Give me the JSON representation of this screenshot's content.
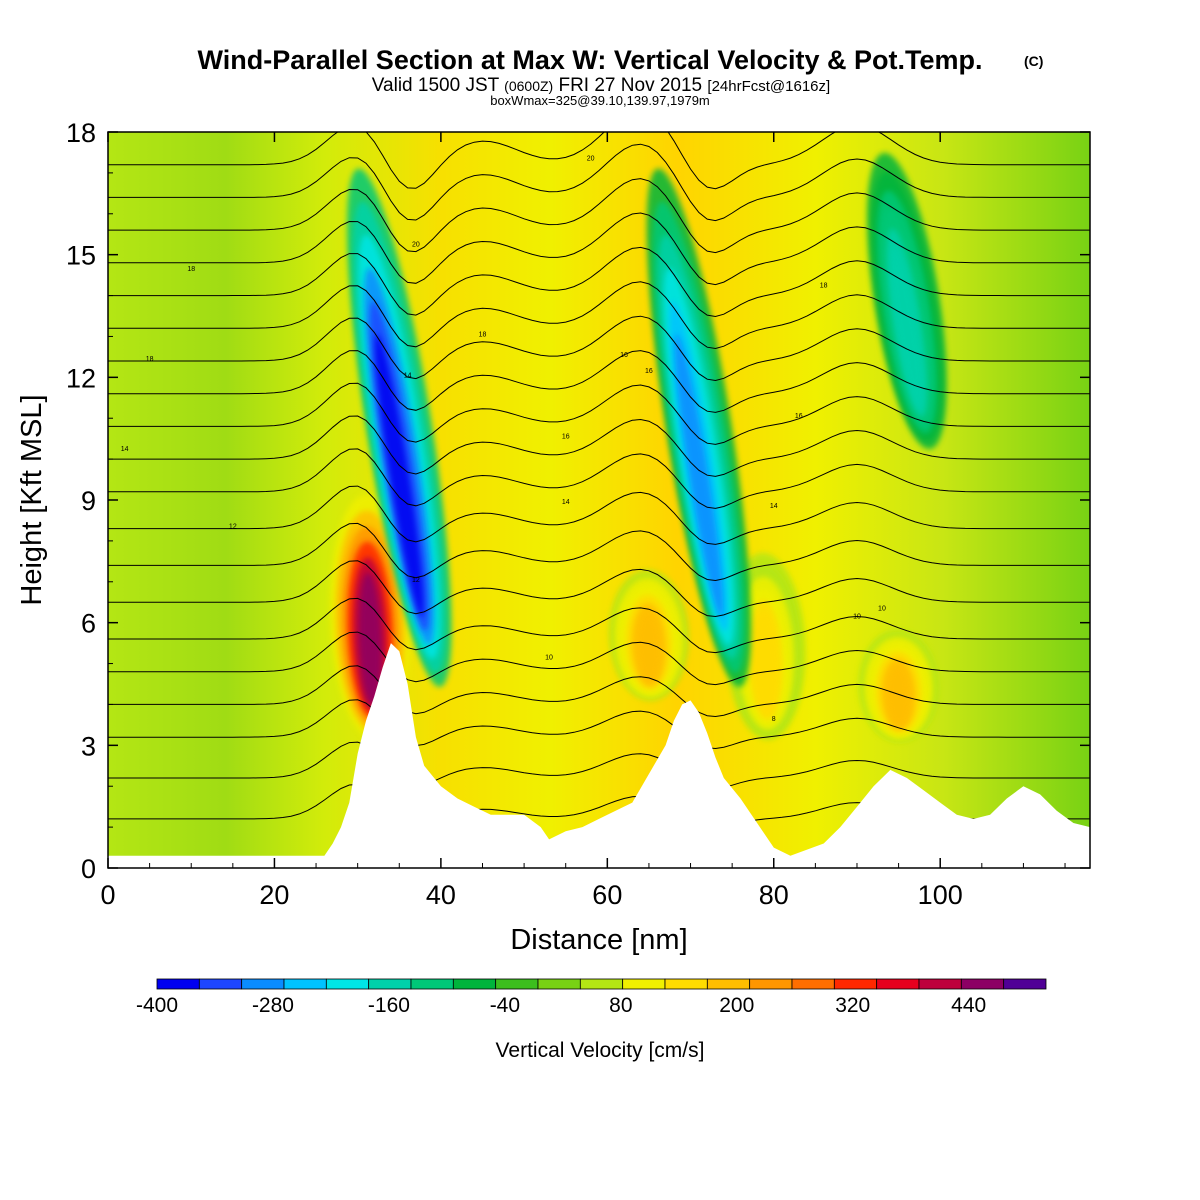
{
  "chart_data": {
    "type": "heatmap",
    "title": "Wind-Parallel Section at Max W: Vertical Velocity & Pot.Temp.",
    "title_mark": "(C)",
    "subtitle_parts": [
      "Valid 1500 JST",
      "(0600Z)",
      "FRI 27 Nov 2015",
      "[24hrFcst@1616z]"
    ],
    "subtitle2": "boxWmax=325@39.10,139.97,1979m",
    "xlabel": "Distance [nm]",
    "ylabel": "Height [Kft MSL]",
    "xlim": [
      0,
      118
    ],
    "ylim": [
      0,
      18
    ],
    "x_ticks": [
      0,
      20,
      40,
      60,
      80,
      100
    ],
    "y_ticks": [
      0,
      3,
      6,
      9,
      12,
      15,
      18
    ],
    "colorbar": {
      "label": "Vertical Velocity [cm/s]",
      "min": -400,
      "max": 520,
      "ticks": [
        -400,
        -280,
        -160,
        -40,
        80,
        200,
        320,
        440
      ],
      "colors": [
        "#0000f0",
        "#1e46ff",
        "#0a8cff",
        "#00c3ff",
        "#00e6e6",
        "#00d2aa",
        "#00c878",
        "#00b43c",
        "#3cbe1e",
        "#78d214",
        "#b4e614",
        "#f0f000",
        "#ffdc00",
        "#ffbe00",
        "#ff9600",
        "#ff6e00",
        "#ff2800",
        "#e6001e",
        "#be003c",
        "#8c0064",
        "#500096"
      ]
    },
    "updrafts": [
      {
        "x": 31.5,
        "bottom": 3.0,
        "top": 9.5,
        "peak": 470
      },
      {
        "x": 65,
        "bottom": 4.0,
        "top": 7.5,
        "peak": 200
      },
      {
        "x": 95,
        "bottom": 3.0,
        "top": 6.0,
        "peak": 200
      },
      {
        "x": 79,
        "bottom": 3.0,
        "top": 8.0,
        "peak": 150
      }
    ],
    "downdrafts": [
      {
        "x": 35,
        "bottom": 4.0,
        "top": 18,
        "peak": -400
      },
      {
        "x": 71,
        "bottom": 4.0,
        "top": 18,
        "peak": -300
      },
      {
        "x": 96,
        "bottom": 10.0,
        "top": 18,
        "peak": -180
      }
    ],
    "terrain": [
      [
        0,
        0.3
      ],
      [
        26,
        0.3
      ],
      [
        27,
        0.6
      ],
      [
        28,
        1.0
      ],
      [
        29,
        1.6
      ],
      [
        30,
        2.8
      ],
      [
        31,
        3.6
      ],
      [
        32,
        4.2
      ],
      [
        33,
        4.9
      ],
      [
        34,
        5.5
      ],
      [
        35,
        5.3
      ],
      [
        36,
        4.5
      ],
      [
        37,
        3.2
      ],
      [
        38,
        2.5
      ],
      [
        40,
        2.0
      ],
      [
        42,
        1.7
      ],
      [
        44,
        1.5
      ],
      [
        46,
        1.3
      ],
      [
        48,
        1.3
      ],
      [
        50,
        1.3
      ],
      [
        52,
        1.0
      ],
      [
        53,
        0.7
      ],
      [
        55,
        0.9
      ],
      [
        57,
        1.0
      ],
      [
        59,
        1.2
      ],
      [
        61,
        1.4
      ],
      [
        63,
        1.6
      ],
      [
        65,
        2.3
      ],
      [
        67,
        3.0
      ],
      [
        68,
        3.6
      ],
      [
        69,
        4.0
      ],
      [
        70,
        4.1
      ],
      [
        71,
        3.8
      ],
      [
        72,
        3.3
      ],
      [
        73,
        2.7
      ],
      [
        74,
        2.2
      ],
      [
        76,
        1.7
      ],
      [
        78,
        1.1
      ],
      [
        80,
        0.5
      ],
      [
        82,
        0.3
      ],
      [
        86,
        0.6
      ],
      [
        88,
        1.0
      ],
      [
        90,
        1.5
      ],
      [
        92,
        2.0
      ],
      [
        94,
        2.4
      ],
      [
        96,
        2.2
      ],
      [
        98,
        1.9
      ],
      [
        100,
        1.6
      ],
      [
        102,
        1.3
      ],
      [
        104,
        1.2
      ],
      [
        106,
        1.3
      ],
      [
        108,
        1.7
      ],
      [
        110,
        2.0
      ],
      [
        112,
        1.8
      ],
      [
        114,
        1.4
      ],
      [
        116,
        1.1
      ],
      [
        118,
        1.0
      ]
    ],
    "theta_labels": [
      "8",
      "10",
      "10",
      "10",
      "12",
      "12",
      "14",
      "14",
      "14",
      "14",
      "16",
      "16",
      "16",
      "16",
      "18",
      "18",
      "18",
      "18",
      "20",
      "20"
    ]
  }
}
